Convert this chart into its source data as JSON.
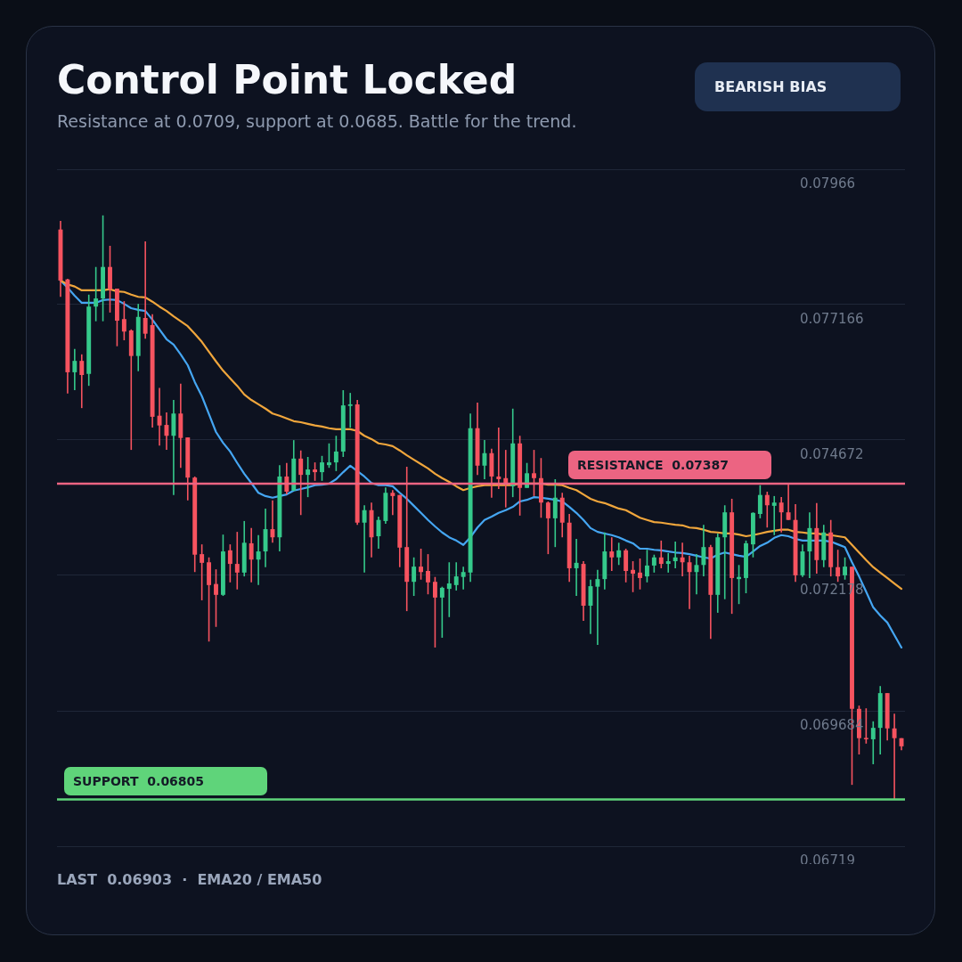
{
  "chart_data": {
    "type": "candlestick",
    "title": "Control Point Locked",
    "subtitle": "Resistance at 0.0709, support at 0.0685. Battle for the trend.",
    "annotations": [
      "BEARISH BIAS",
      "LAST  0.06903  ·  EMA20 / EMA50"
    ],
    "categories": [
      null,
      null,
      null,
      null,
      null,
      null,
      null,
      null,
      null,
      null,
      null,
      null,
      null,
      null,
      null,
      null,
      null,
      null,
      null,
      null,
      null,
      null,
      null,
      null,
      null,
      null,
      null,
      null,
      null,
      null,
      null,
      null,
      null,
      null,
      null,
      null,
      null,
      null,
      null,
      null,
      null,
      null,
      null,
      null,
      null,
      null,
      null,
      null,
      null,
      null,
      null,
      null,
      null,
      null,
      null,
      null,
      null,
      null,
      null,
      null,
      null,
      null,
      null,
      null,
      null,
      null,
      null,
      null,
      null,
      null,
      null,
      null,
      null,
      null,
      null,
      null,
      null,
      null,
      null,
      null,
      null,
      null,
      null,
      null,
      null,
      null,
      null,
      null,
      null,
      null,
      null,
      null,
      null,
      null,
      null,
      null,
      null,
      null,
      null,
      null,
      null,
      null,
      null,
      null,
      null,
      null,
      null,
      null,
      null,
      null,
      null,
      null,
      null,
      null,
      null,
      null,
      null,
      null,
      null,
      null
    ],
    "ohlc": [
      [
        0.07855,
        0.07871,
        0.07731,
        0.07761
      ],
      [
        0.07763,
        0.07764,
        0.07553,
        0.07592
      ],
      [
        0.07592,
        0.07635,
        0.07559,
        0.07613
      ],
      [
        0.07613,
        0.07625,
        0.07526,
        0.07587
      ],
      [
        0.07589,
        0.07735,
        0.07567,
        0.07713
      ],
      [
        0.07713,
        0.07786,
        0.07686,
        0.07728
      ],
      [
        0.07728,
        0.07881,
        0.07686,
        0.07786
      ],
      [
        0.07786,
        0.07825,
        0.07702,
        0.07745
      ],
      [
        0.07746,
        0.07746,
        0.0764,
        0.07687
      ],
      [
        0.0769,
        0.07723,
        0.07651,
        0.07667
      ],
      [
        0.07669,
        0.07671,
        0.07449,
        0.07622
      ],
      [
        0.07622,
        0.07718,
        0.07594,
        0.07694
      ],
      [
        0.07692,
        0.07833,
        0.07654,
        0.07663
      ],
      [
        0.07679,
        0.07699,
        0.0749,
        0.0751
      ],
      [
        0.07512,
        0.07563,
        0.07457,
        0.07494
      ],
      [
        0.07495,
        0.07518,
        0.07449,
        0.07475
      ],
      [
        0.07475,
        0.07541,
        0.07366,
        0.07516
      ],
      [
        0.07516,
        0.07571,
        0.07416,
        0.07471
      ],
      [
        0.07472,
        0.07472,
        0.07356,
        0.07398
      ],
      [
        0.07398,
        0.074,
        0.07224,
        0.07256
      ],
      [
        0.07257,
        0.07275,
        0.07172,
        0.07241
      ],
      [
        0.07242,
        0.07251,
        0.07096,
        0.072
      ],
      [
        0.07202,
        0.07229,
        0.07123,
        0.07182
      ],
      [
        0.07182,
        0.07293,
        0.0718,
        0.07262
      ],
      [
        0.07264,
        0.07275,
        0.07205,
        0.07239
      ],
      [
        0.07239,
        0.07298,
        0.07192,
        0.07223
      ],
      [
        0.07223,
        0.07318,
        0.07216,
        0.07278
      ],
      [
        0.07277,
        0.07305,
        0.07205,
        0.07247
      ],
      [
        0.07247,
        0.07292,
        0.072,
        0.07262
      ],
      [
        0.07262,
        0.07341,
        0.07233,
        0.07303
      ],
      [
        0.07303,
        0.07356,
        0.07278,
        0.07288
      ],
      [
        0.07288,
        0.07421,
        0.07262,
        0.074
      ],
      [
        0.074,
        0.07425,
        0.07367,
        0.07372
      ],
      [
        0.07374,
        0.07467,
        0.07374,
        0.07433
      ],
      [
        0.07433,
        0.07448,
        0.07329,
        0.07403
      ],
      [
        0.07403,
        0.07436,
        0.07362,
        0.07413
      ],
      [
        0.07413,
        0.07426,
        0.07392,
        0.07408
      ],
      [
        0.07408,
        0.07438,
        0.07392,
        0.07426
      ],
      [
        0.07421,
        0.07461,
        0.07416,
        0.07426
      ],
      [
        0.07426,
        0.07475,
        0.0741,
        0.07446
      ],
      [
        0.07446,
        0.07559,
        0.07436,
        0.07531
      ],
      [
        0.0753,
        0.07554,
        0.0749,
        0.07533
      ],
      [
        0.07533,
        0.07541,
        0.07311,
        0.07315
      ],
      [
        0.07315,
        0.07347,
        0.07223,
        0.07338
      ],
      [
        0.07338,
        0.07352,
        0.07251,
        0.07288
      ],
      [
        0.0729,
        0.07326,
        0.07267,
        0.0732
      ],
      [
        0.07318,
        0.0738,
        0.07313,
        0.0737
      ],
      [
        0.0737,
        0.07375,
        0.07329,
        0.07364
      ],
      [
        0.07366,
        0.07366,
        0.07233,
        0.07269
      ],
      [
        0.0727,
        0.07418,
        0.07152,
        0.07206
      ],
      [
        0.07206,
        0.07251,
        0.0718,
        0.07234
      ],
      [
        0.07234,
        0.07267,
        0.0721,
        0.07224
      ],
      [
        0.07226,
        0.07257,
        0.07183,
        0.07205
      ],
      [
        0.07206,
        0.07215,
        0.07085,
        0.07177
      ],
      [
        0.07177,
        0.07197,
        0.07103,
        0.07195
      ],
      [
        0.07193,
        0.07242,
        0.07141,
        0.07203
      ],
      [
        0.072,
        0.07242,
        0.0719,
        0.07216
      ],
      [
        0.07215,
        0.07234,
        0.07192,
        0.07224
      ],
      [
        0.07223,
        0.07516,
        0.07206,
        0.07489
      ],
      [
        0.07489,
        0.07536,
        0.07403,
        0.0742
      ],
      [
        0.0742,
        0.07467,
        0.07395,
        0.07443
      ],
      [
        0.07443,
        0.07451,
        0.07361,
        0.074
      ],
      [
        0.074,
        0.0749,
        0.07377,
        0.07395
      ],
      [
        0.07397,
        0.07449,
        0.07343,
        0.07387
      ],
      [
        0.07382,
        0.07525,
        0.07362,
        0.07461
      ],
      [
        0.07461,
        0.07475,
        0.07328,
        0.07379
      ],
      [
        0.07379,
        0.07425,
        0.07379,
        0.07406
      ],
      [
        0.07406,
        0.07449,
        0.07364,
        0.07397
      ],
      [
        0.07397,
        0.07434,
        0.07324,
        0.07352
      ],
      [
        0.07352,
        0.07354,
        0.07257,
        0.07323
      ],
      [
        0.07323,
        0.07395,
        0.0727,
        0.07361
      ],
      [
        0.07361,
        0.0737,
        0.07288,
        0.07315
      ],
      [
        0.07315,
        0.07331,
        0.07206,
        0.07231
      ],
      [
        0.07231,
        0.07285,
        0.0718,
        0.07241
      ],
      [
        0.07239,
        0.07244,
        0.07134,
        0.07162
      ],
      [
        0.07162,
        0.0721,
        0.0711,
        0.07198
      ],
      [
        0.07197,
        0.07228,
        0.0709,
        0.07211
      ],
      [
        0.07211,
        0.07297,
        0.07192,
        0.07262
      ],
      [
        0.07262,
        0.07288,
        0.07226,
        0.07251
      ],
      [
        0.07251,
        0.07278,
        0.07237,
        0.07264
      ],
      [
        0.07264,
        0.07267,
        0.07205,
        0.07226
      ],
      [
        0.07228,
        0.07244,
        0.07187,
        0.07221
      ],
      [
        0.07223,
        0.07249,
        0.07192,
        0.07213
      ],
      [
        0.07216,
        0.07265,
        0.07205,
        0.07236
      ],
      [
        0.07236,
        0.07256,
        0.07223,
        0.07251
      ],
      [
        0.07251,
        0.07282,
        0.07231,
        0.07239
      ],
      [
        0.07239,
        0.07259,
        0.07223,
        0.07244
      ],
      [
        0.07244,
        0.0728,
        0.07231,
        0.07251
      ],
      [
        0.07251,
        0.07278,
        0.07216,
        0.07242
      ],
      [
        0.07242,
        0.07254,
        0.07156,
        0.07224
      ],
      [
        0.07224,
        0.07257,
        0.07183,
        0.07237
      ],
      [
        0.07237,
        0.07311,
        0.07216,
        0.0727
      ],
      [
        0.0727,
        0.07274,
        0.07101,
        0.07182
      ],
      [
        0.07182,
        0.07295,
        0.07149,
        0.07288
      ],
      [
        0.07288,
        0.07347,
        0.07174,
        0.07334
      ],
      [
        0.07334,
        0.07359,
        0.07147,
        0.07213
      ],
      [
        0.07211,
        0.07237,
        0.07165,
        0.07215
      ],
      [
        0.07213,
        0.07282,
        0.07185,
        0.07277
      ],
      [
        0.07275,
        0.07334,
        0.07251,
        0.07333
      ],
      [
        0.07331,
        0.07384,
        0.07323,
        0.07366
      ],
      [
        0.07366,
        0.07372,
        0.07306,
        0.07347
      ],
      [
        0.07346,
        0.07364,
        0.07292,
        0.07352
      ],
      [
        0.07352,
        0.07362,
        0.07297,
        0.07334
      ],
      [
        0.07334,
        0.07387,
        0.0732,
        0.0732
      ],
      [
        0.0732,
        0.07349,
        0.07206,
        0.07218
      ],
      [
        0.07218,
        0.07275,
        0.07215,
        0.07262
      ],
      [
        0.07262,
        0.07334,
        0.07213,
        0.07305
      ],
      [
        0.07305,
        0.07351,
        0.07221,
        0.07246
      ],
      [
        0.07246,
        0.07311,
        0.07233,
        0.07297
      ],
      [
        0.07297,
        0.0732,
        0.07216,
        0.07233
      ],
      [
        0.07233,
        0.07265,
        0.07206,
        0.07216
      ],
      [
        0.07218,
        0.07251,
        0.0721,
        0.07234
      ],
      [
        0.07234,
        0.07234,
        0.06832,
        0.06972
      ],
      [
        0.06972,
        0.06978,
        0.06888,
        0.06918
      ],
      [
        0.06918,
        0.06973,
        0.06908,
        0.06916
      ],
      [
        0.06916,
        0.06949,
        0.0687,
        0.06937
      ],
      [
        0.06937,
        0.07014,
        0.06888,
        0.07001
      ],
      [
        0.07001,
        0.07001,
        0.06914,
        0.06936
      ],
      [
        0.06936,
        0.06963,
        0.06805,
        0.06918
      ],
      [
        0.06918,
        0.06918,
        0.06896,
        0.06903
      ]
    ],
    "colors": [
      "#f6535f",
      "#f6535f",
      "#35c98b",
      "#f6535f",
      "#35c98b",
      "#35c98b",
      "#35c98b",
      "#f6535f",
      "#f6535f",
      "#f6535f",
      "#f6535f",
      "#35c98b",
      "#f6535f",
      "#f6535f",
      "#f6535f",
      "#f6535f",
      "#35c98b",
      "#f6535f",
      "#f6535f",
      "#f6535f",
      "#f6535f",
      "#f6535f",
      "#f6535f",
      "#35c98b",
      "#f6535f",
      "#f6535f",
      "#35c98b",
      "#f6535f",
      "#35c98b",
      "#35c98b",
      "#f6535f",
      "#35c98b",
      "#f6535f",
      "#35c98b",
      "#f6535f",
      "#35c98b",
      "#f6535f",
      "#35c98b",
      "#35c98b",
      "#35c98b",
      "#35c98b",
      "#35c98b",
      "#f6535f",
      "#35c98b",
      "#f6535f",
      "#35c98b",
      "#35c98b",
      "#f6535f",
      "#f6535f",
      "#f6535f",
      "#35c98b",
      "#f6535f",
      "#f6535f",
      "#f6535f",
      "#35c98b",
      "#35c98b",
      "#35c98b",
      "#35c98b",
      "#35c98b",
      "#f6535f",
      "#35c98b",
      "#f6535f",
      "#f6535f",
      "#f6535f",
      "#35c98b",
      "#f6535f",
      "#35c98b",
      "#f6535f",
      "#f6535f",
      "#f6535f",
      "#35c98b",
      "#f6535f",
      "#f6535f",
      "#35c98b",
      "#f6535f",
      "#35c98b",
      "#35c98b",
      "#35c98b",
      "#f6535f",
      "#35c98b",
      "#f6535f",
      "#f6535f",
      "#f6535f",
      "#35c98b",
      "#35c98b",
      "#f6535f",
      "#35c98b",
      "#35c98b",
      "#f6535f",
      "#f6535f",
      "#35c98b",
      "#35c98b",
      "#f6535f",
      "#35c98b",
      "#35c98b",
      "#f6535f",
      "#35c98b",
      "#35c98b",
      "#35c98b",
      "#35c98b",
      "#f6535f",
      "#35c98b",
      "#f6535f",
      "#f6535f",
      "#f6535f",
      "#35c98b",
      "#35c98b",
      "#f6535f",
      "#35c98b",
      "#f6535f",
      "#f6535f",
      "#35c98b",
      "#f6535f",
      "#f6535f",
      "#f6535f",
      "#35c98b",
      "#35c98b",
      "#f6535f",
      "#f6535f",
      "#f6535f"
    ],
    "series": [
      {
        "type": "line",
        "color": "#f0a63c",
        "values": [
          0.07761,
          0.07754,
          0.0775,
          0.07743,
          0.07743,
          0.07743,
          0.07743,
          0.07745,
          0.07741,
          0.0774,
          0.07735,
          0.07731,
          0.0773,
          0.07722,
          0.07713,
          0.07705,
          0.07695,
          0.07686,
          0.07677,
          0.07663,
          0.07648,
          0.0763,
          0.07612,
          0.07595,
          0.07581,
          0.07567,
          0.07551,
          0.07541,
          0.07533,
          0.07525,
          0.07516,
          0.07512,
          0.07507,
          0.07502,
          0.075,
          0.07497,
          0.07494,
          0.07492,
          0.07489,
          0.07487,
          0.07487,
          0.07487,
          0.07484,
          0.07475,
          0.07469,
          0.07461,
          0.07459,
          0.07456,
          0.07448,
          0.07439,
          0.07431,
          0.07423,
          0.07415,
          0.07405,
          0.07397,
          0.0739,
          0.07382,
          0.07375,
          0.07379,
          0.07382,
          0.07384,
          0.07384,
          0.07384,
          0.07384,
          0.07384,
          0.07387,
          0.07387,
          0.07387,
          0.07387,
          0.07385,
          0.07385,
          0.07384,
          0.07379,
          0.07375,
          0.07367,
          0.07359,
          0.07354,
          0.07351,
          0.07346,
          0.07341,
          0.07338,
          0.07331,
          0.07324,
          0.0732,
          0.07316,
          0.07315,
          0.07313,
          0.07311,
          0.0731,
          0.07306,
          0.07305,
          0.07302,
          0.07298,
          0.07297,
          0.07295,
          0.07295,
          0.07293,
          0.0729,
          0.07292,
          0.07295,
          0.07298,
          0.073,
          0.07302,
          0.07302,
          0.07298,
          0.07297,
          0.07295,
          0.07295,
          0.07293,
          0.07292,
          0.0729,
          0.07288,
          0.07274,
          0.0726,
          0.07246,
          0.07233,
          0.07223,
          0.07213,
          0.07203,
          0.07193
        ]
      },
      {
        "type": "line",
        "color": "#45a6f2",
        "values": [
          0.07761,
          0.07748,
          0.07733,
          0.0772,
          0.0772,
          0.0772,
          0.07725,
          0.07726,
          0.07725,
          0.07718,
          0.0771,
          0.07707,
          0.07705,
          0.07689,
          0.07671,
          0.07653,
          0.07643,
          0.07625,
          0.07605,
          0.07574,
          0.07548,
          0.07515,
          0.07482,
          0.07462,
          0.07446,
          0.07425,
          0.07405,
          0.07388,
          0.0737,
          0.07364,
          0.07361,
          0.07364,
          0.07367,
          0.07374,
          0.07377,
          0.0738,
          0.07384,
          0.07385,
          0.07387,
          0.07395,
          0.07408,
          0.0742,
          0.0741,
          0.074,
          0.07388,
          0.07384,
          0.07384,
          0.07382,
          0.0737,
          0.07359,
          0.07346,
          0.07333,
          0.0732,
          0.07308,
          0.07297,
          0.07288,
          0.07282,
          0.07274,
          0.07288,
          0.07306,
          0.0732,
          0.07326,
          0.07333,
          0.07338,
          0.07344,
          0.07354,
          0.07357,
          0.07362,
          0.07361,
          0.07359,
          0.07357,
          0.07354,
          0.07344,
          0.07333,
          0.0732,
          0.07305,
          0.07298,
          0.07295,
          0.07292,
          0.07288,
          0.07282,
          0.07277,
          0.07267,
          0.07267,
          0.07265,
          0.07264,
          0.07262,
          0.0726,
          0.07259,
          0.07257,
          0.07254,
          0.07251,
          0.07249,
          0.07256,
          0.0726,
          0.07257,
          0.07254,
          0.07252,
          0.07262,
          0.07272,
          0.07278,
          0.07287,
          0.07292,
          0.0729,
          0.07285,
          0.07282,
          0.07282,
          0.07282,
          0.07282,
          0.0728,
          0.07275,
          0.0727,
          0.07242,
          0.07216,
          0.07188,
          0.07159,
          0.07144,
          0.07131,
          0.07108,
          0.07085
        ]
      }
    ],
    "ylim": [
      0.06719,
      0.07966
    ],
    "yticks": [
      0.07966,
      0.077166,
      0.074672,
      0.072178,
      0.069684,
      0.06719
    ],
    "ref_lines": [
      {
        "axis": "y",
        "value": 0.07387,
        "label": "RESISTANCE  0.07387",
        "color": "#ec6482"
      },
      {
        "axis": "y",
        "value": 0.06805,
        "label": "SUPPORT  0.06805",
        "color": "#5fd47a"
      }
    ],
    "grid": "y",
    "tick_labels": "y",
    "marker": "none",
    "line_style": "solid",
    "legend": false
  }
}
